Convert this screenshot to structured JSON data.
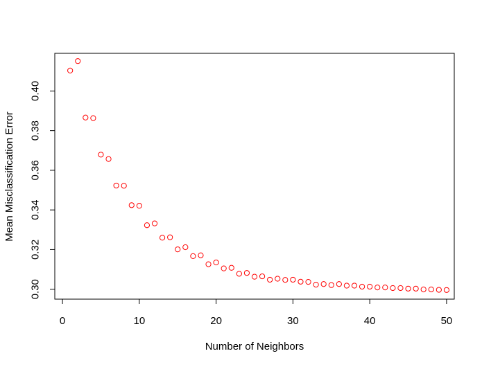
{
  "chart_data": {
    "type": "scatter",
    "title": "",
    "xlabel": "Number of Neighbors",
    "ylabel": "Mean Misclassification Error",
    "xlim": [
      -1,
      51
    ],
    "ylim": [
      0.295,
      0.419
    ],
    "xticks": [
      0,
      10,
      20,
      30,
      40,
      50
    ],
    "xtick_labels": [
      "0",
      "10",
      "20",
      "30",
      "40",
      "50"
    ],
    "yticks": [
      0.3,
      0.32,
      0.34,
      0.36,
      0.38,
      0.4
    ],
    "ytick_labels": [
      "0.30",
      "0.32",
      "0.34",
      "0.36",
      "0.38",
      "0.40"
    ],
    "grid": false,
    "legend": "none",
    "marker": "open-circle",
    "point_color": "#ff0000",
    "x": [
      1,
      2,
      3,
      4,
      5,
      6,
      7,
      8,
      9,
      10,
      11,
      12,
      13,
      14,
      15,
      16,
      17,
      18,
      19,
      20,
      21,
      22,
      23,
      24,
      25,
      26,
      27,
      28,
      29,
      30,
      31,
      32,
      33,
      34,
      35,
      36,
      37,
      38,
      39,
      40,
      41,
      42,
      43,
      44,
      45,
      46,
      47,
      48,
      49,
      50
    ],
    "y": [
      0.4103,
      0.4151,
      0.3866,
      0.3863,
      0.3679,
      0.3657,
      0.3523,
      0.3522,
      0.3424,
      0.3421,
      0.3323,
      0.3332,
      0.326,
      0.3262,
      0.3201,
      0.3212,
      0.3167,
      0.3171,
      0.3126,
      0.3135,
      0.3105,
      0.3108,
      0.3078,
      0.3082,
      0.3063,
      0.3065,
      0.3048,
      0.3053,
      0.3047,
      0.3048,
      0.3038,
      0.3037,
      0.3023,
      0.3026,
      0.3021,
      0.3026,
      0.3018,
      0.3018,
      0.3013,
      0.3013,
      0.3009,
      0.3009,
      0.3006,
      0.3006,
      0.3003,
      0.3003,
      0.2999,
      0.2999,
      0.2997,
      0.2996
    ]
  }
}
